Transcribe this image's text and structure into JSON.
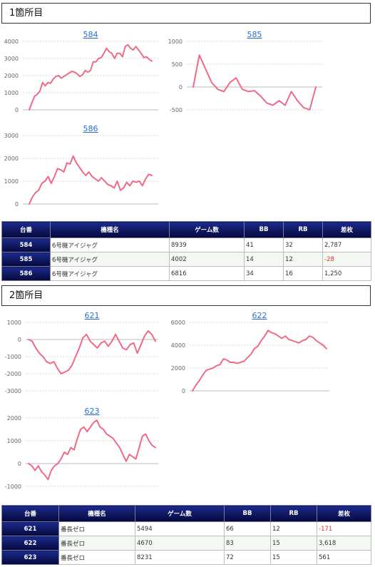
{
  "sections": [
    {
      "title": "1箇所目",
      "charts": [
        {
          "title": "584",
          "ylim": [
            0,
            4000
          ],
          "ticks": [
            0,
            1000,
            2000,
            3000,
            4000
          ],
          "values": [
            0,
            400,
            800,
            900,
            1100,
            1600,
            1400,
            1600,
            1550,
            1800,
            1950,
            2000,
            1850,
            1950,
            2050,
            2150,
            2250,
            2200,
            2100,
            1950,
            2050,
            2300,
            2200,
            2300,
            2800,
            2800,
            3000,
            3050,
            3300,
            3600,
            3400,
            3300,
            3000,
            3300,
            3300,
            3100,
            3700,
            3800,
            3600,
            3500,
            3700,
            3500,
            3300,
            3050,
            3100,
            2950,
            2850
          ]
        },
        {
          "title": "585",
          "ylim": [
            -500,
            1000
          ],
          "ticks": [
            -500,
            0,
            500,
            1000
          ],
          "values": [
            0,
            700,
            400,
            100,
            -50,
            -100,
            100,
            200,
            -50,
            -100,
            -80,
            -200,
            -350,
            -400,
            -300,
            -400,
            -100,
            -300,
            -450,
            -500,
            0
          ]
        },
        {
          "title": "586",
          "ylim": [
            0,
            3000
          ],
          "ticks": [
            0,
            1000,
            2000,
            3000
          ],
          "values": [
            0,
            300,
            500,
            600,
            900,
            1000,
            1200,
            900,
            1200,
            1550,
            1500,
            1400,
            1800,
            1750,
            2100,
            1800,
            1600,
            1400,
            1250,
            1400,
            1200,
            1100,
            1000,
            1150,
            1000,
            850,
            800,
            700,
            1000,
            600,
            700,
            950,
            800,
            1000,
            950,
            1000,
            800,
            1100,
            1300,
            1250
          ]
        }
      ],
      "table": {
        "headers": [
          "台番",
          "機種名",
          "ゲーム数",
          "BB",
          "RB",
          "差枚"
        ],
        "rows": [
          {
            "num": "584",
            "model": "6号機アイジャグ",
            "games": "8939",
            "bb": "41",
            "rb": "32",
            "diff": "2,787",
            "neg": false
          },
          {
            "num": "585",
            "model": "6号機アイジャグ",
            "games": "4002",
            "bb": "14",
            "rb": "12",
            "diff": "-28",
            "neg": true
          },
          {
            "num": "586",
            "model": "6号機アイジャグ",
            "games": "6816",
            "bb": "34",
            "rb": "16",
            "diff": "1,250",
            "neg": false
          }
        ]
      }
    },
    {
      "title": "2箇所目",
      "charts": [
        {
          "title": "621",
          "ylim": [
            -3000,
            1000
          ],
          "ticks": [
            -3000,
            -2000,
            -1000,
            0,
            1000
          ],
          "values": [
            0,
            -100,
            -500,
            -800,
            -1000,
            -1300,
            -1400,
            -1300,
            -1700,
            -2000,
            -1900,
            -1800,
            -1500,
            -1000,
            -500,
            100,
            300,
            -100,
            -300,
            -500,
            -200,
            -100,
            -400,
            -100,
            300,
            -100,
            -500,
            -600,
            -300,
            -200,
            -800,
            -300,
            200,
            500,
            300,
            -100
          ]
        },
        {
          "title": "622",
          "ylim": [
            0,
            6000
          ],
          "ticks": [
            0,
            2000,
            4000,
            6000
          ],
          "values": [
            0,
            500,
            900,
            1400,
            1800,
            1900,
            2000,
            2200,
            2300,
            2800,
            2700,
            2500,
            2500,
            2400,
            2500,
            2600,
            2900,
            3200,
            3700,
            3900,
            4400,
            4800,
            5300,
            5100,
            5000,
            4800,
            4600,
            4800,
            4500,
            4400,
            4300,
            4200,
            4400,
            4500,
            4800,
            4700,
            4400,
            4200,
            4000,
            3700
          ]
        },
        {
          "title": "623",
          "ylim": [
            -1000,
            2000
          ],
          "ticks": [
            -1000,
            0,
            1000,
            2000
          ],
          "values": [
            0,
            -100,
            -300,
            -100,
            -350,
            -500,
            -700,
            -300,
            -100,
            0,
            200,
            500,
            400,
            700,
            600,
            1100,
            1500,
            1600,
            1400,
            1600,
            1800,
            1900,
            1600,
            1500,
            1300,
            1200,
            1100,
            900,
            700,
            400,
            100,
            400,
            300,
            200,
            700,
            1200,
            1300,
            1000,
            800,
            700
          ]
        }
      ],
      "table": {
        "headers": [
          "台番",
          "機種名",
          "ゲーム数",
          "BB",
          "RB",
          "差枚"
        ],
        "rows": [
          {
            "num": "621",
            "model": "番長ゼロ",
            "games": "5494",
            "bb": "66",
            "rb": "12",
            "diff": "-171",
            "neg": true
          },
          {
            "num": "622",
            "model": "番長ゼロ",
            "games": "4670",
            "bb": "83",
            "rb": "15",
            "diff": "3,618",
            "neg": false
          },
          {
            "num": "623",
            "model": "番長ゼロ",
            "games": "8231",
            "bb": "72",
            "rb": "15",
            "diff": "561",
            "neg": false
          }
        ]
      }
    }
  ],
  "chart_data": [
    {
      "type": "line",
      "title": "584",
      "ylim": [
        0,
        4000
      ],
      "series": [
        {
          "values": [
            0,
            400,
            800,
            900,
            1100,
            1600,
            1400,
            1600,
            1550,
            1800,
            1950,
            2000,
            1850,
            1950,
            2050,
            2150,
            2250,
            2200,
            2100,
            1950,
            2050,
            2300,
            2200,
            2300,
            2800,
            2800,
            3000,
            3050,
            3300,
            3600,
            3400,
            3300,
            3000,
            3300,
            3300,
            3100,
            3700,
            3800,
            3600,
            3500,
            3700,
            3500,
            3300,
            3050,
            3100,
            2950,
            2850
          ]
        }
      ]
    },
    {
      "type": "line",
      "title": "585",
      "ylim": [
        -500,
        1000
      ],
      "series": [
        {
          "values": [
            0,
            700,
            400,
            100,
            -50,
            -100,
            100,
            200,
            -50,
            -100,
            -80,
            -200,
            -350,
            -400,
            -300,
            -400,
            -100,
            -300,
            -450,
            -500,
            0
          ]
        }
      ]
    },
    {
      "type": "line",
      "title": "586",
      "ylim": [
        0,
        3000
      ],
      "series": [
        {
          "values": [
            0,
            300,
            500,
            600,
            900,
            1000,
            1200,
            900,
            1200,
            1550,
            1500,
            1400,
            1800,
            1750,
            2100,
            1800,
            1600,
            1400,
            1250,
            1400,
            1200,
            1100,
            1000,
            1150,
            1000,
            850,
            800,
            700,
            1000,
            600,
            700,
            950,
            800,
            1000,
            950,
            1000,
            800,
            1100,
            1300,
            1250
          ]
        }
      ]
    },
    {
      "type": "line",
      "title": "621",
      "ylim": [
        -3000,
        1000
      ],
      "series": [
        {
          "values": [
            0,
            -100,
            -500,
            -800,
            -1000,
            -1300,
            -1400,
            -1300,
            -1700,
            -2000,
            -1900,
            -1800,
            -1500,
            -1000,
            -500,
            100,
            300,
            -100,
            -300,
            -500,
            -200,
            -100,
            -400,
            -100,
            300,
            -100,
            -500,
            -600,
            -300,
            -200,
            -800,
            -300,
            200,
            500,
            300,
            -100
          ]
        }
      ]
    },
    {
      "type": "line",
      "title": "622",
      "ylim": [
        0,
        6000
      ],
      "series": [
        {
          "values": [
            0,
            500,
            900,
            1400,
            1800,
            1900,
            2000,
            2200,
            2300,
            2800,
            2700,
            2500,
            2500,
            2400,
            2500,
            2600,
            2900,
            3200,
            3700,
            3900,
            4400,
            4800,
            5300,
            5100,
            5000,
            4800,
            4600,
            4800,
            4500,
            4400,
            4300,
            4200,
            4400,
            4500,
            4800,
            4700,
            4400,
            4200,
            4000,
            3700
          ]
        }
      ]
    },
    {
      "type": "line",
      "title": "623",
      "ylim": [
        -1000,
        2000
      ],
      "series": [
        {
          "values": [
            0,
            -100,
            -300,
            -100,
            -350,
            -500,
            -700,
            -300,
            -100,
            0,
            200,
            500,
            400,
            700,
            600,
            1100,
            1500,
            1600,
            1400,
            1600,
            1800,
            1900,
            1600,
            1500,
            1300,
            1200,
            1100,
            900,
            700,
            400,
            100,
            400,
            300,
            200,
            700,
            1200,
            1300,
            1000,
            800,
            700
          ]
        }
      ]
    }
  ],
  "colors": {
    "line": "#f06a86",
    "header_bg": "#0b1260",
    "link": "#2a6fd1",
    "negative": "#e03030"
  }
}
